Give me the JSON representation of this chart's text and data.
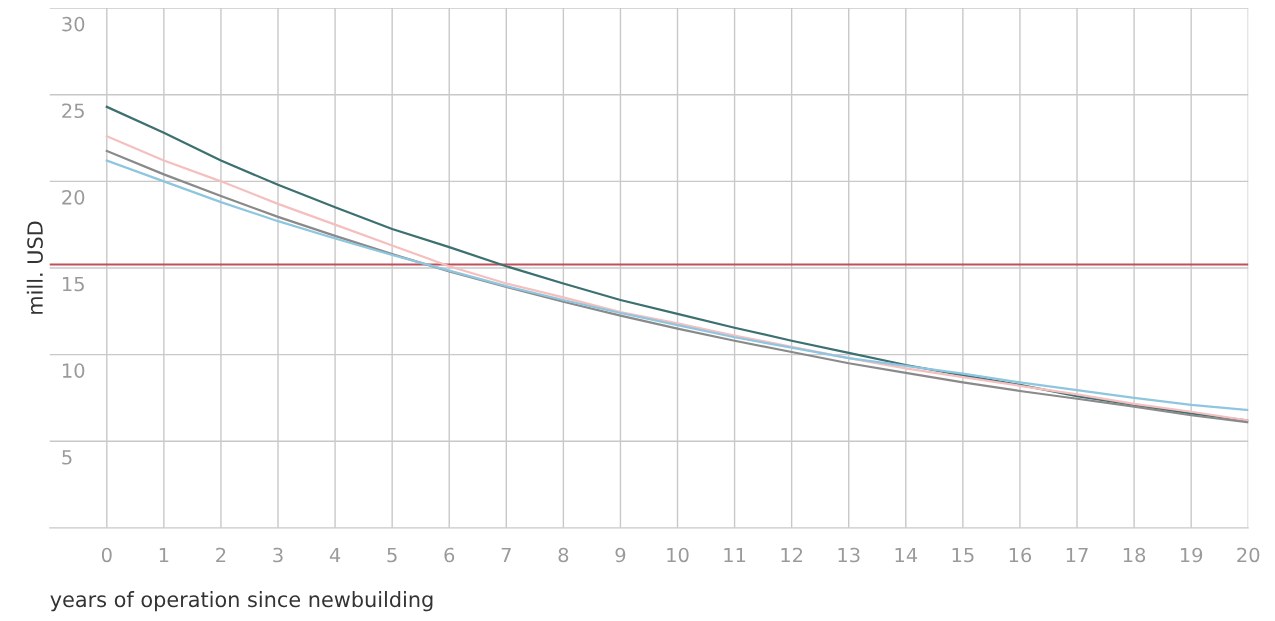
{
  "chart_data": {
    "type": "line",
    "xlabel": "years of operation since newbuilding",
    "ylabel": "mill. USD",
    "x": [
      0,
      1,
      2,
      3,
      4,
      5,
      6,
      7,
      8,
      9,
      10,
      11,
      12,
      13,
      14,
      15,
      16,
      17,
      18,
      19,
      20
    ],
    "series": [
      {
        "color": "#3d7070",
        "values": [
          24.3,
          22.8,
          21.2,
          19.8,
          18.5,
          17.25,
          16.2,
          15.1,
          14.1,
          13.15,
          12.35,
          11.55,
          10.8,
          10.1,
          9.4,
          8.8,
          8.25,
          7.6,
          7.1,
          6.6,
          6.2
        ]
      },
      {
        "color": "#f5bfbf",
        "values": [
          22.6,
          21.2,
          20.0,
          18.7,
          17.5,
          16.3,
          15.1,
          14.1,
          13.3,
          12.45,
          11.8,
          11.1,
          10.45,
          9.8,
          9.2,
          8.7,
          8.2,
          7.7,
          7.15,
          6.7,
          6.2
        ]
      },
      {
        "color": "#8a8a8a",
        "values": [
          21.75,
          20.4,
          19.15,
          17.95,
          16.85,
          15.8,
          14.8,
          13.9,
          13.05,
          12.25,
          11.5,
          10.8,
          10.15,
          9.5,
          8.95,
          8.4,
          7.9,
          7.45,
          7.0,
          6.5,
          6.1
        ]
      },
      {
        "color": "#8ec6df",
        "values": [
          21.2,
          20.0,
          18.8,
          17.7,
          16.7,
          15.75,
          14.85,
          13.95,
          13.15,
          12.4,
          11.7,
          11.0,
          10.4,
          9.8,
          9.35,
          8.9,
          8.4,
          7.95,
          7.5,
          7.1,
          6.8
        ]
      }
    ],
    "ref_lines": [
      {
        "axis": "y",
        "value": 15.2,
        "color": "#c0505a"
      }
    ],
    "xlim": [
      -1,
      20
    ],
    "xticks": [
      0,
      1,
      2,
      3,
      4,
      5,
      6,
      7,
      8,
      9,
      10,
      11,
      12,
      13,
      14,
      15,
      16,
      17,
      18,
      19,
      20
    ],
    "ylim": [
      0,
      30
    ],
    "yticks": [
      5,
      10,
      15,
      20,
      25,
      30
    ],
    "grid": true,
    "legend": false,
    "marker": "none",
    "line_style": "solid"
  }
}
